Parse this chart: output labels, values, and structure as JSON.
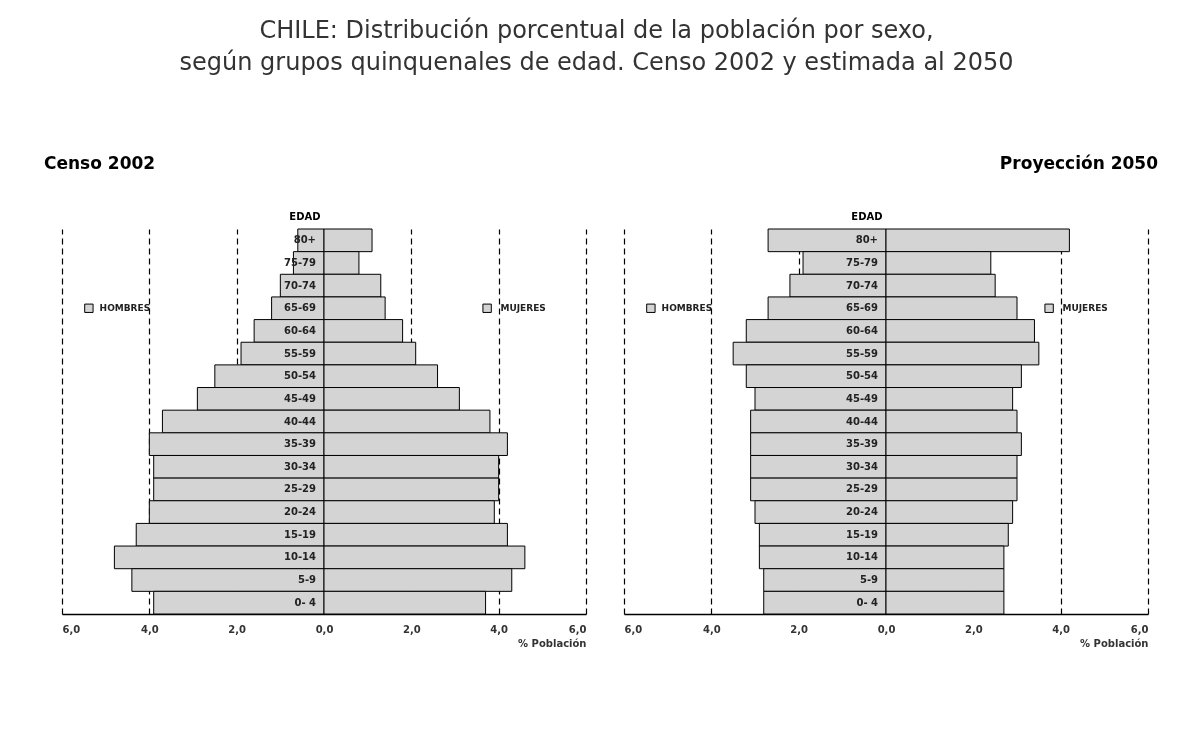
{
  "chart_data": [
    {
      "type": "bar",
      "orientation": "horizontal",
      "stacked": true,
      "legend": "top",
      "title": "CHILE: Distribución porcentual de la población por sexo,\nsegún grupos quinquenales de edad. Censo 2002 y estimada al 2050",
      "subtitle": "Censo 2002",
      "xlabel": "% Población",
      "ylabel": "EDAD",
      "grid": "x",
      "line_style": "dashed",
      "categories": [
        "80+",
        "75-79",
        "70-74",
        "65-69",
        "60-64",
        "55-59",
        "50-54",
        "45-49",
        "40-44",
        "35-39",
        "30-34",
        "25-29",
        "20-24",
        "15-19",
        "10-14",
        "5-9",
        "0- 4"
      ],
      "xlim": [
        -6,
        6
      ],
      "xticks": [
        {
          "value": -6,
          "label": "6,0"
        },
        {
          "value": -4,
          "label": "4,0"
        },
        {
          "value": -2,
          "label": "2,0"
        },
        {
          "value": 0,
          "label": "0,0"
        },
        {
          "value": 2,
          "label": "2,0"
        },
        {
          "value": 4,
          "label": "4,0"
        },
        {
          "value": 6,
          "label": "6,0"
        }
      ],
      "series": [
        {
          "name": "HOMBRES",
          "color": "#d4d4d4",
          "values": [
            -0.6,
            -0.7,
            -1.0,
            -1.2,
            -1.6,
            -1.9,
            -2.5,
            -2.9,
            -3.7,
            -4.0,
            -3.9,
            -3.9,
            -4.0,
            -4.3,
            -4.8,
            -4.4,
            -3.9
          ]
        },
        {
          "name": "MUJERES",
          "color": "#d4d4d4",
          "values": [
            1.1,
            0.8,
            1.3,
            1.4,
            1.8,
            2.1,
            2.6,
            3.1,
            3.8,
            4.2,
            4.0,
            4.0,
            3.9,
            4.2,
            4.6,
            4.3,
            3.7
          ]
        }
      ]
    },
    {
      "type": "bar",
      "orientation": "horizontal",
      "stacked": true,
      "legend": "top",
      "subtitle": "Proyección 2050",
      "xlabel": "% Población",
      "ylabel": "EDAD",
      "grid": "x",
      "line_style": "dashed",
      "categories": [
        "80+",
        "75-79",
        "70-74",
        "65-69",
        "60-64",
        "55-59",
        "50-54",
        "45-49",
        "40-44",
        "35-39",
        "30-34",
        "25-29",
        "20-24",
        "15-19",
        "10-14",
        "5-9",
        "0- 4"
      ],
      "xlim": [
        -6,
        6
      ],
      "xticks": [
        {
          "value": -6,
          "label": "6,0"
        },
        {
          "value": -4,
          "label": "4,0"
        },
        {
          "value": -2,
          "label": "2,0"
        },
        {
          "value": 0,
          "label": "0,0"
        },
        {
          "value": 2,
          "label": "2,0"
        },
        {
          "value": 4,
          "label": "4,0"
        },
        {
          "value": 6,
          "label": "6,0"
        }
      ],
      "series": [
        {
          "name": "HOMBRES",
          "color": "#d4d4d4",
          "values": [
            -2.7,
            -1.9,
            -2.2,
            -2.7,
            -3.2,
            -3.5,
            -3.2,
            -3.0,
            -3.1,
            -3.1,
            -3.1,
            -3.1,
            -3.0,
            -2.9,
            -2.9,
            -2.8,
            -2.8
          ]
        },
        {
          "name": "MUJERES",
          "color": "#d4d4d4",
          "values": [
            4.2,
            2.4,
            2.5,
            3.0,
            3.4,
            3.5,
            3.1,
            2.9,
            3.0,
            3.1,
            3.0,
            3.0,
            2.9,
            2.8,
            2.7,
            2.7,
            2.7
          ]
        }
      ]
    }
  ]
}
